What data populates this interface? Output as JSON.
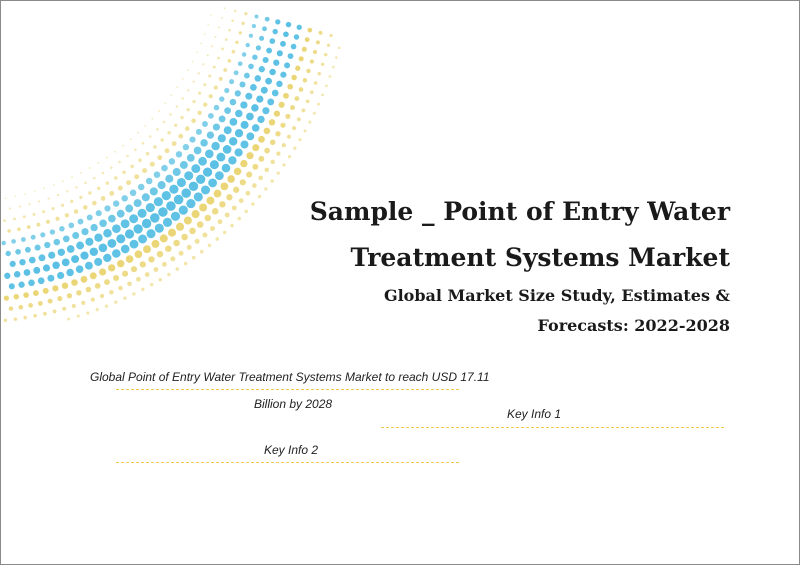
{
  "title": {
    "line1": "Sample _ Point of Entry Water",
    "line2": "Treatment Systems Market"
  },
  "subtitle": {
    "line1": "Global Market Size Study, Estimates &",
    "line2": "Forecasts: 2022-2028"
  },
  "key_info": {
    "headline_line1": "Global Point of Entry Water Treatment Systems Market to reach USD 17.11",
    "headline_line2": "Billion by 2028",
    "info1": "Key Info 1",
    "info2": "Key Info 2"
  },
  "colors": {
    "blue_dots": "#5bc0e3",
    "yellow_dots": "#e8d064",
    "divider": "#f2c94c"
  }
}
